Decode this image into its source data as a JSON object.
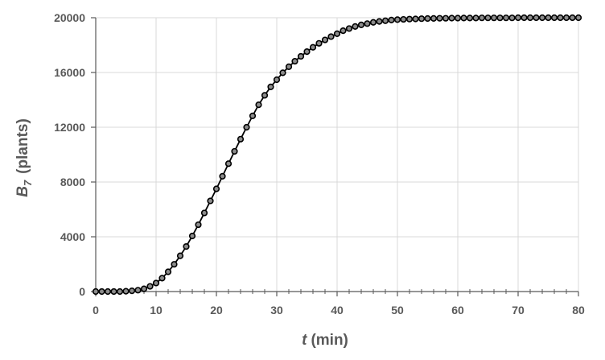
{
  "chart_data": {
    "type": "scatter",
    "title": "",
    "xlabel": {
      "symbol": "t",
      "unit": "(min)"
    },
    "ylabel": {
      "symbol": "B",
      "subscript": "7",
      "unit": "(plants)"
    },
    "xlim": [
      0,
      80
    ],
    "ylim": [
      0,
      20000
    ],
    "xticks": [
      "0",
      "10",
      "20",
      "30",
      "40",
      "50",
      "60",
      "70",
      "80"
    ],
    "yticks": [
      "0",
      "4000",
      "8000",
      "12000",
      "16000",
      "20000"
    ],
    "grid": true,
    "legend": "none",
    "colors": {
      "line": "#000000",
      "marker_fill": "#8c8c8c",
      "marker_edge": "#000000",
      "grid": "#d9d9d9",
      "axis": "#595959"
    },
    "series": [
      {
        "x": [
          0,
          1,
          2,
          3,
          4,
          5,
          6,
          7,
          8,
          9,
          10,
          11,
          12,
          13,
          14,
          15,
          16,
          17,
          18,
          19,
          20,
          21,
          22,
          23,
          24,
          25,
          26,
          27,
          28,
          29,
          30,
          31,
          32,
          33,
          34,
          35,
          36,
          37,
          38,
          39,
          40,
          41,
          42,
          43,
          44,
          45,
          46,
          47,
          48,
          49,
          50,
          51,
          52,
          53,
          54,
          55,
          56,
          57,
          58,
          59,
          60,
          61,
          62,
          63,
          64,
          65,
          66,
          67,
          68,
          69,
          70,
          71,
          72,
          73,
          74,
          75,
          76,
          77,
          78,
          79,
          80
        ],
        "y": [
          0,
          0,
          0,
          0,
          0,
          20,
          50,
          100,
          200,
          380,
          620,
          980,
          1440,
          1990,
          2610,
          3290,
          4060,
          4880,
          5740,
          6620,
          7500,
          8420,
          9340,
          10240,
          11130,
          12000,
          12830,
          13640,
          14330,
          14950,
          15470,
          15980,
          16420,
          16820,
          17180,
          17520,
          17840,
          18130,
          18380,
          18620,
          18830,
          19050,
          19210,
          19360,
          19480,
          19570,
          19660,
          19730,
          19780,
          19830,
          19860,
          19880,
          19900,
          19910,
          19930,
          19940,
          19950,
          19960,
          19960,
          19970,
          19970,
          19980,
          19980,
          19980,
          19990,
          19990,
          19990,
          19990,
          19990,
          19990,
          20000,
          20000,
          20000,
          20000,
          20000,
          20000,
          20000,
          20000,
          20000,
          20000,
          20000
        ]
      }
    ]
  }
}
